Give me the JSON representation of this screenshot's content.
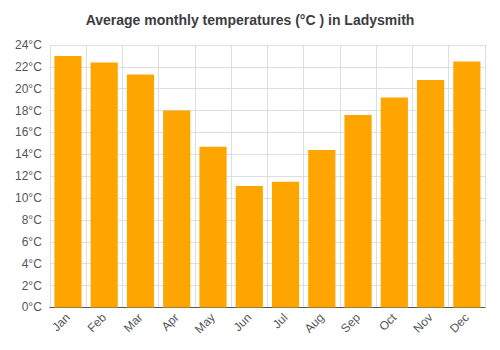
{
  "chart_data": {
    "type": "bar",
    "title": "Average monthly temperatures (°C ) in Ladysmith",
    "categories": [
      "Jan",
      "Feb",
      "Mar",
      "Apr",
      "May",
      "Jun",
      "Jul",
      "Aug",
      "Sep",
      "Oct",
      "Nov",
      "Dec"
    ],
    "values": [
      23.0,
      22.4,
      21.3,
      18.0,
      14.7,
      11.1,
      11.5,
      14.4,
      17.6,
      19.2,
      20.8,
      22.5
    ],
    "color": "#FFA500",
    "ylim": [
      0,
      24
    ],
    "yticks": [
      {
        "value": 0,
        "label": "0°C"
      },
      {
        "value": 2,
        "label": "2°C"
      },
      {
        "value": 4,
        "label": "4°C"
      },
      {
        "value": 6,
        "label": "6°C"
      },
      {
        "value": 8,
        "label": "8°C"
      },
      {
        "value": 10,
        "label": "10°C"
      },
      {
        "value": 12,
        "label": "12°C"
      },
      {
        "value": 14,
        "label": "14°C"
      },
      {
        "value": 16,
        "label": "16°C"
      },
      {
        "value": 18,
        "label": "18°C"
      },
      {
        "value": 20,
        "label": "20°C"
      },
      {
        "value": 22,
        "label": "22°C"
      },
      {
        "value": 24,
        "label": "24°C"
      }
    ],
    "grid": true
  }
}
